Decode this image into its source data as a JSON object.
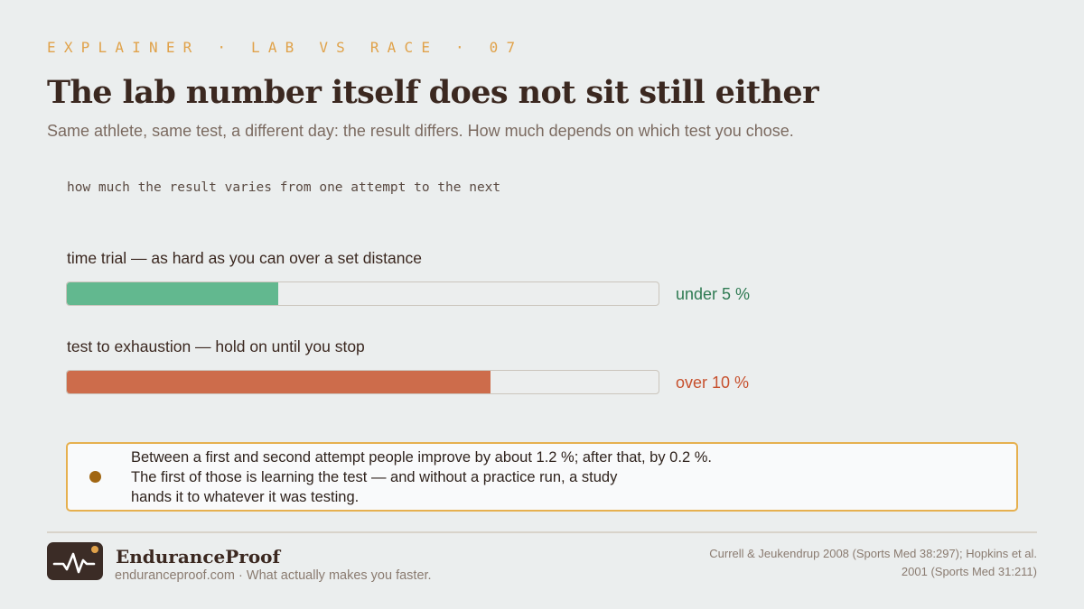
{
  "header": {
    "eyebrow": "EXPLAINER · LAB VS RACE · 07",
    "title": "The lab number itself does not sit still either",
    "subtitle": "Same athlete, same test, a different day: the result differs. How much depends on which test you chose."
  },
  "chart": {
    "label": "how much the result varies from one attempt to the next",
    "bars": [
      {
        "label": "time trial — as hard as you can over a set distance",
        "value_label": "under 5 %",
        "fill_fraction": 0.357,
        "color": "#62b88f",
        "text_color": "#2e7a52"
      },
      {
        "label": "test to exhaustion — hold on until you stop",
        "value_label": "over 10 %",
        "fill_fraction": 0.716,
        "color": "#cd6c4b",
        "text_color": "#c7512e"
      }
    ]
  },
  "note": {
    "line1": "Between a first and second attempt people improve by about 1.2 %; after that, by 0.2 %.",
    "line2": "The first of those is learning the test — and without a practice run, a study",
    "line3": "hands it to whatever it was testing."
  },
  "footer": {
    "brand_name": "EnduranceProof",
    "tagline": "enduranceproof.com · What actually makes you faster.",
    "source": "Currell & Jeukendrup 2008 (Sports Med 38:297); Hopkins et al. 2001 (Sports Med 31:211)",
    "logo_icon": "heartbeat-line-icon",
    "accent": "#e0a24a"
  }
}
